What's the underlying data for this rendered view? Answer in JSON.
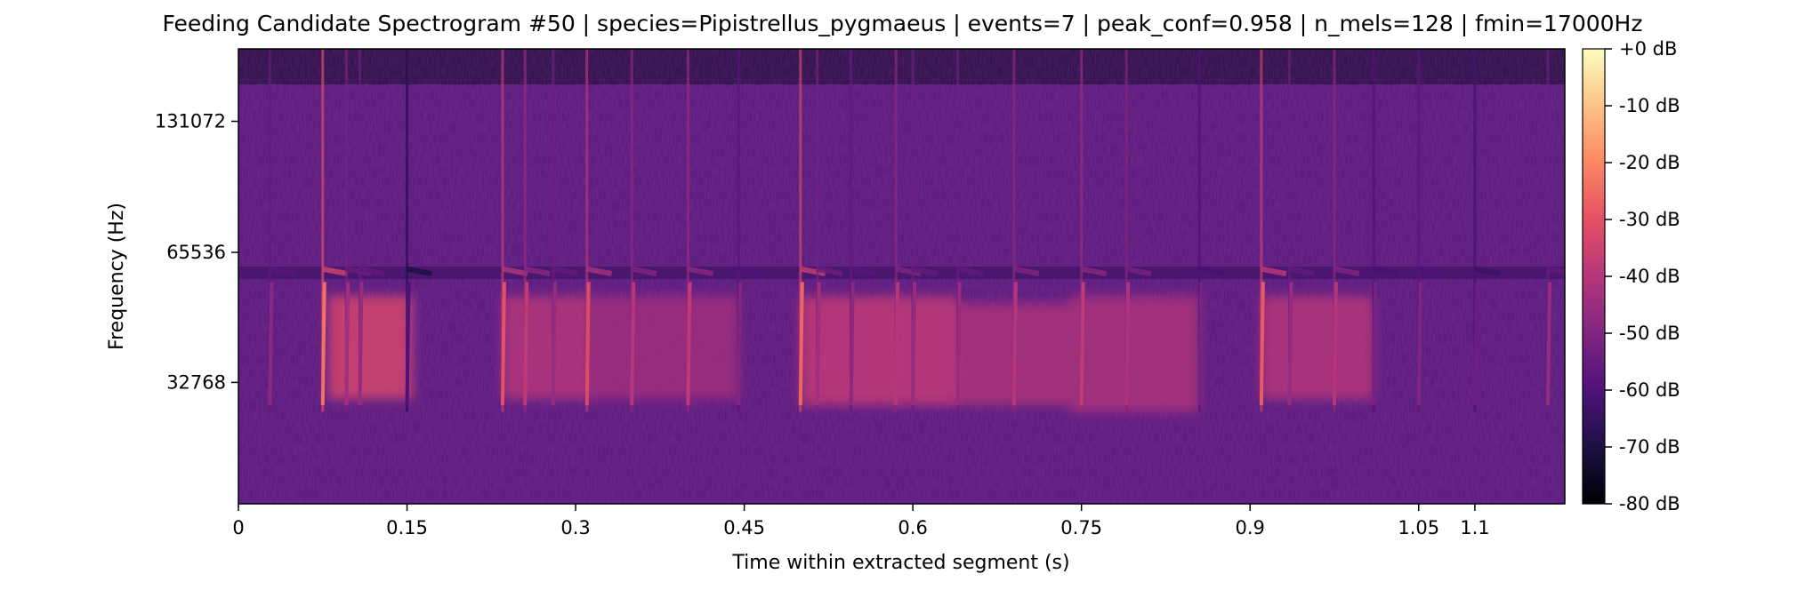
{
  "chart_data": {
    "type": "heatmap",
    "title": "Feeding Candidate Spectrogram #50 | species=Pipistrellus_pygmaeus | events=7 | peak_conf=0.958 | n_mels=128 | fmin=17000Hz",
    "xlabel": "Time within extracted segment (s)",
    "ylabel": "Frequency (Hz)",
    "xlim": [
      0,
      1.18
    ],
    "x_ticks": [
      {
        "value": 0,
        "label": "0"
      },
      {
        "value": 0.15,
        "label": "0.15"
      },
      {
        "value": 0.3,
        "label": "0.3"
      },
      {
        "value": 0.45,
        "label": "0.45"
      },
      {
        "value": 0.6,
        "label": "0.6"
      },
      {
        "value": 0.75,
        "label": "0.75"
      },
      {
        "value": 0.9,
        "label": "0.9"
      },
      {
        "value": 1.05,
        "label": "1.05"
      },
      {
        "value": 1.1,
        "label": "1.1"
      }
    ],
    "y_scale": "mel",
    "ylim": [
      17000,
      192000
    ],
    "y_ticks": [
      {
        "value": 32768,
        "label": "32768"
      },
      {
        "value": 65536,
        "label": "65536"
      },
      {
        "value": 131072,
        "label": "131072"
      }
    ],
    "colormap": "magma",
    "colorbar": {
      "range_db": [
        -80,
        0
      ],
      "ticks": [
        {
          "value": 0,
          "label": "+0 dB"
        },
        {
          "value": -10,
          "label": "-10 dB"
        },
        {
          "value": -20,
          "label": "-20 dB"
        },
        {
          "value": -30,
          "label": "-30 dB"
        },
        {
          "value": -40,
          "label": "-40 dB"
        },
        {
          "value": -50,
          "label": "-50 dB"
        },
        {
          "value": -60,
          "label": "-60 dB"
        },
        {
          "value": -70,
          "label": "-70 dB"
        },
        {
          "value": -80,
          "label": "-80 dB"
        }
      ]
    },
    "pulses": [
      {
        "t": 0.028,
        "db": -48
      },
      {
        "t": 0.075,
        "db": -24
      },
      {
        "t": 0.096,
        "db": -44
      },
      {
        "t": 0.108,
        "db": -46
      },
      {
        "t": 0.15,
        "db": -60
      },
      {
        "t": 0.235,
        "db": -30
      },
      {
        "t": 0.255,
        "db": -38
      },
      {
        "t": 0.28,
        "db": -46
      },
      {
        "t": 0.31,
        "db": -32
      },
      {
        "t": 0.35,
        "db": -40
      },
      {
        "t": 0.4,
        "db": -38
      },
      {
        "t": 0.445,
        "db": -50
      },
      {
        "t": 0.5,
        "db": -26
      },
      {
        "t": 0.515,
        "db": -44
      },
      {
        "t": 0.545,
        "db": -48
      },
      {
        "t": 0.585,
        "db": -40
      },
      {
        "t": 0.6,
        "db": -46
      },
      {
        "t": 0.64,
        "db": -46
      },
      {
        "t": 0.69,
        "db": -40
      },
      {
        "t": 0.75,
        "db": -38
      },
      {
        "t": 0.79,
        "db": -42
      },
      {
        "t": 0.855,
        "db": -52
      },
      {
        "t": 0.91,
        "db": -28
      },
      {
        "t": 0.935,
        "db": -46
      },
      {
        "t": 0.975,
        "db": -40
      },
      {
        "t": 1.01,
        "db": -52
      },
      {
        "t": 1.05,
        "db": -50
      },
      {
        "t": 1.1,
        "db": -54
      },
      {
        "t": 1.165,
        "db": -46
      }
    ],
    "energy_blocks": [
      {
        "t_start": 0.08,
        "t_end": 0.155,
        "f_low": 30000,
        "f_high": 52000,
        "db": -34
      },
      {
        "t_start": 0.235,
        "t_end": 0.31,
        "f_low": 30000,
        "f_high": 52000,
        "db": -40
      },
      {
        "t_start": 0.31,
        "t_end": 0.445,
        "f_low": 30000,
        "f_high": 52000,
        "db": -44
      },
      {
        "t_start": 0.5,
        "t_end": 0.64,
        "f_low": 29000,
        "f_high": 52000,
        "db": -38
      },
      {
        "t_start": 0.64,
        "t_end": 0.74,
        "f_low": 29000,
        "f_high": 50000,
        "db": -42
      },
      {
        "t_start": 0.74,
        "t_end": 0.855,
        "f_low": 28000,
        "f_high": 52000,
        "db": -42
      },
      {
        "t_start": 0.91,
        "t_end": 1.01,
        "f_low": 30000,
        "f_high": 52000,
        "db": -40
      }
    ],
    "background_db": -58
  }
}
